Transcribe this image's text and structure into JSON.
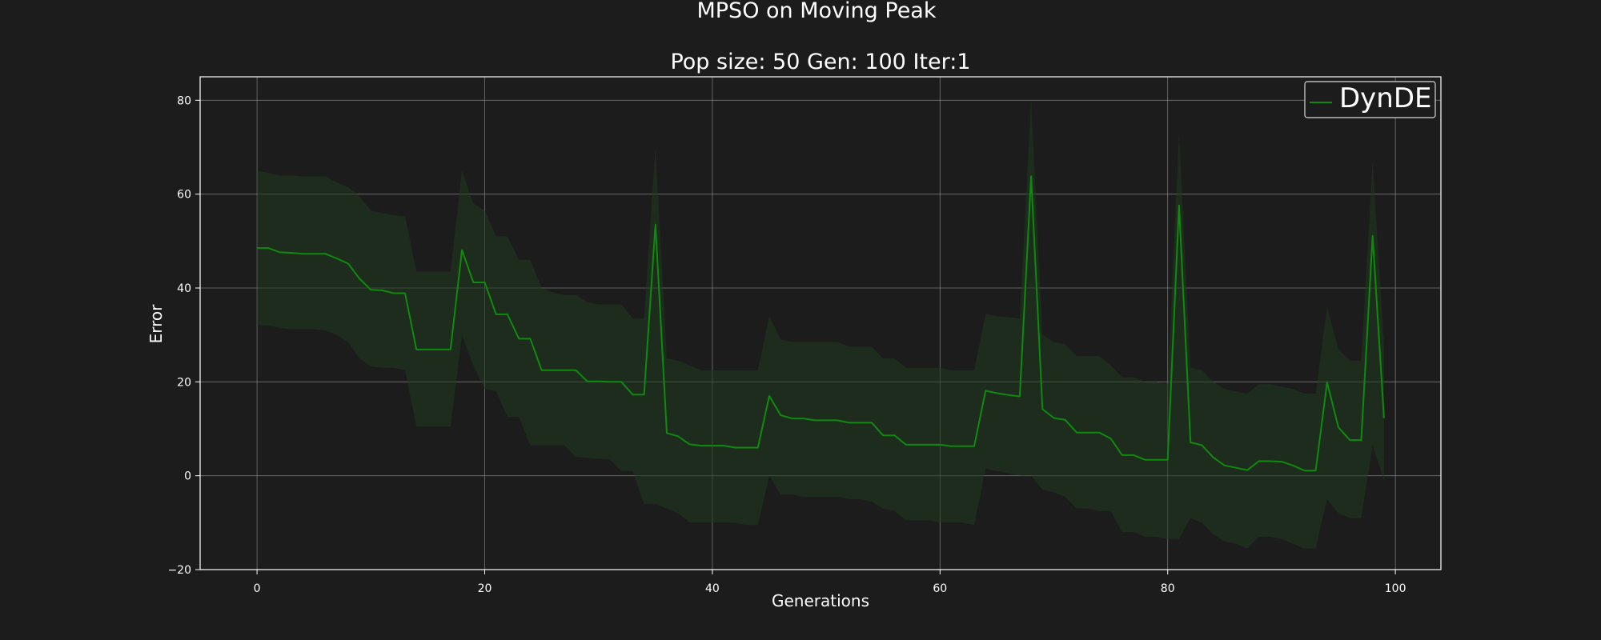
{
  "chart_data": {
    "type": "line",
    "title": "MPSO on Moving Peak",
    "subtitle": "Pop size: 50  Gen: 100  Iter:1",
    "xlabel": "Generations",
    "ylabel": "Error",
    "xlim": [
      -5,
      104
    ],
    "ylim": [
      -20,
      85
    ],
    "xticks": [
      0,
      20,
      40,
      60,
      80,
      100
    ],
    "yticks": [
      -20,
      0,
      20,
      40,
      60,
      80
    ],
    "xtick_labels": [
      "0",
      "20",
      "40",
      "60",
      "80",
      "100"
    ],
    "ytick_labels": [
      "−20",
      "0",
      "20",
      "40",
      "60",
      "80"
    ],
    "grid": true,
    "legend_position": "top-right",
    "series": [
      {
        "name": "DynDE",
        "color": "#0f8a0f",
        "band_color": "#1f3a1f",
        "x": [
          0,
          1,
          2,
          3,
          4,
          5,
          6,
          7,
          8,
          9,
          10,
          11,
          12,
          13,
          14,
          15,
          16,
          17,
          18,
          19,
          20,
          21,
          22,
          23,
          24,
          25,
          26,
          27,
          28,
          29,
          30,
          31,
          32,
          33,
          34,
          35,
          36,
          37,
          38,
          39,
          40,
          41,
          42,
          43,
          44,
          45,
          46,
          47,
          48,
          49,
          50,
          51,
          52,
          53,
          54,
          55,
          56,
          57,
          58,
          59,
          60,
          61,
          62,
          63,
          64,
          65,
          66,
          67,
          68,
          69,
          70,
          71,
          72,
          73,
          74,
          75,
          76,
          77,
          78,
          79,
          80,
          81,
          82,
          83,
          84,
          85,
          86,
          87,
          88,
          89,
          90,
          91,
          92,
          93,
          94,
          95,
          96,
          97,
          98,
          99
        ],
        "mean": [
          48.5,
          48.5,
          47.6,
          47.5,
          47.3,
          47.3,
          47.3,
          46.3,
          45.2,
          42.0,
          39.6,
          39.5,
          38.9,
          38.9,
          26.9,
          26.9,
          26.9,
          26.9,
          48.1,
          41.2,
          41.2,
          34.4,
          34.4,
          29.2,
          29.2,
          22.5,
          22.5,
          22.5,
          22.5,
          20.1,
          20.1,
          20.0,
          20.0,
          17.3,
          17.3,
          53.5,
          9.1,
          8.4,
          6.7,
          6.4,
          6.4,
          6.4,
          6.0,
          6.0,
          6.0,
          17.0,
          12.9,
          12.2,
          12.2,
          11.8,
          11.8,
          11.8,
          11.3,
          11.3,
          11.3,
          8.6,
          8.6,
          6.6,
          6.6,
          6.6,
          6.6,
          6.3,
          6.3,
          6.3,
          18.1,
          17.6,
          17.2,
          16.9,
          63.8,
          14.2,
          12.3,
          11.9,
          9.2,
          9.2,
          9.2,
          7.9,
          4.4,
          4.4,
          3.4,
          3.4,
          3.4,
          57.6,
          7.1,
          6.5,
          3.9,
          2.2,
          1.7,
          1.2,
          3.1,
          3.1,
          3.0,
          2.2,
          1.1,
          1.1,
          19.9,
          10.3,
          7.6,
          7.6,
          51.1,
          12.3
        ],
        "lower": [
          32.1,
          32.0,
          31.5,
          31.2,
          31.2,
          31.2,
          31.0,
          30.0,
          28.5,
          25.0,
          23.3,
          23.0,
          23.0,
          22.5,
          10.5,
          10.5,
          10.5,
          10.5,
          30.0,
          23.5,
          18.5,
          18.0,
          12.5,
          12.5,
          6.5,
          6.5,
          6.5,
          6.5,
          4.0,
          3.8,
          3.6,
          3.5,
          1.0,
          1.0,
          -6.0,
          -6.0,
          -7.0,
          -8.0,
          -10.0,
          -10.0,
          -10.0,
          -10.0,
          -10.0,
          -10.5,
          -10.5,
          0.0,
          -4.0,
          -4.0,
          -4.5,
          -4.5,
          -4.5,
          -4.5,
          -5.0,
          -5.0,
          -5.5,
          -7.0,
          -7.5,
          -9.5,
          -9.5,
          -9.5,
          -10.0,
          -10.0,
          -10.0,
          -10.5,
          1.5,
          1.0,
          0.5,
          0.0,
          0.0,
          -3.0,
          -3.5,
          -4.5,
          -7.0,
          -7.0,
          -7.5,
          -7.5,
          -12.0,
          -12.0,
          -13.0,
          -13.0,
          -13.5,
          -13.5,
          -9.0,
          -10.0,
          -12.5,
          -14.0,
          -14.5,
          -15.5,
          -13.0,
          -13.0,
          -13.5,
          -14.5,
          -15.5,
          -15.5,
          -5.0,
          -8.0,
          -9.0,
          -9.0,
          6.5,
          -1.0
        ],
        "upper": [
          65.0,
          64.5,
          64.0,
          64.0,
          63.8,
          63.8,
          63.8,
          62.5,
          61.5,
          59.5,
          56.5,
          56.0,
          55.5,
          55.3,
          43.5,
          43.5,
          43.5,
          43.5,
          65.0,
          58.0,
          56.5,
          51.0,
          51.0,
          46.0,
          46.0,
          40.0,
          39.0,
          38.5,
          38.5,
          37.0,
          36.5,
          36.5,
          36.5,
          33.5,
          33.5,
          70.0,
          25.0,
          24.5,
          23.5,
          22.5,
          22.5,
          22.5,
          22.5,
          22.5,
          22.5,
          34.0,
          29.0,
          28.5,
          28.5,
          28.5,
          28.5,
          28.5,
          27.5,
          27.5,
          27.5,
          25.0,
          25.0,
          23.0,
          23.0,
          23.0,
          23.0,
          22.5,
          22.5,
          22.5,
          34.5,
          34.0,
          33.8,
          33.5,
          80.0,
          30.0,
          28.5,
          28.0,
          25.5,
          25.5,
          25.5,
          23.5,
          21.0,
          21.0,
          20.0,
          20.0,
          19.5,
          73.0,
          23.0,
          22.5,
          20.0,
          18.5,
          18.0,
          17.5,
          19.5,
          19.5,
          19.0,
          18.5,
          17.5,
          17.5,
          36.0,
          27.0,
          24.5,
          24.5,
          67.0,
          28.0
        ]
      }
    ]
  }
}
